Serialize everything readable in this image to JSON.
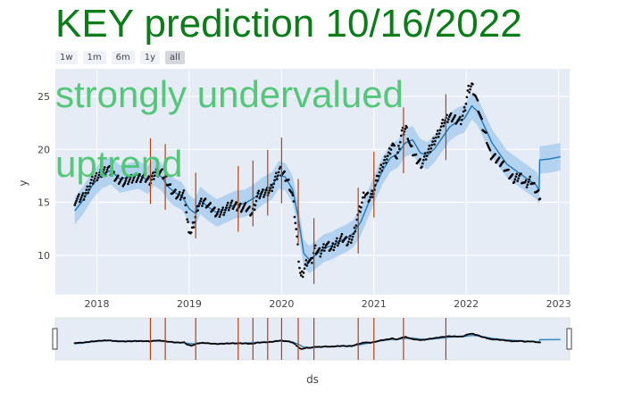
{
  "title": "KEY prediction 10/16/2022",
  "range_buttons": [
    {
      "label": "1w",
      "active": false
    },
    {
      "label": "1m",
      "active": false
    },
    {
      "label": "6m",
      "active": false
    },
    {
      "label": "1y",
      "active": false
    },
    {
      "label": "all",
      "active": true
    }
  ],
  "annotations": [
    "strongly undervalued",
    "uptrend"
  ],
  "colors": {
    "title": "#0b7d18",
    "annotation": "#4dc673",
    "plot_bg": "#e5ecf6",
    "forecast_line": "#1f77b4",
    "band": "#9ec7ec",
    "actual": "#000000",
    "changepoint": "#b5420c"
  },
  "chart_data": {
    "type": "line",
    "xlabel": "ds",
    "ylabel": "y",
    "x_range": [
      2017.55,
      2023.12
    ],
    "ylim": [
      6.3,
      27.6
    ],
    "x_ticks": [
      {
        "label": "2018",
        "value": 2018
      },
      {
        "label": "2019",
        "value": 2019
      },
      {
        "label": "2020",
        "value": 2020
      },
      {
        "label": "2021",
        "value": 2021
      },
      {
        "label": "2022",
        "value": 2022
      },
      {
        "label": "2023",
        "value": 2023
      }
    ],
    "y_ticks": [
      10,
      15,
      20,
      25
    ],
    "series": [
      {
        "kind": "forecast",
        "points": [
          [
            2017.76,
            14.2
          ],
          [
            2017.85,
            15.2
          ],
          [
            2017.95,
            16.6
          ],
          [
            2018.05,
            17.6
          ],
          [
            2018.15,
            18.0
          ],
          [
            2018.25,
            17.2
          ],
          [
            2018.35,
            17.4
          ],
          [
            2018.45,
            17.6
          ],
          [
            2018.55,
            17.1
          ],
          [
            2018.62,
            17.9
          ],
          [
            2018.7,
            17.4
          ],
          [
            2018.78,
            16.4
          ],
          [
            2018.85,
            15.9
          ],
          [
            2018.92,
            15.6
          ],
          [
            2019.0,
            14.4
          ],
          [
            2019.06,
            14.0
          ],
          [
            2019.12,
            15.2
          ],
          [
            2019.2,
            14.6
          ],
          [
            2019.3,
            14.0
          ],
          [
            2019.4,
            14.4
          ],
          [
            2019.5,
            14.8
          ],
          [
            2019.6,
            14.9
          ],
          [
            2019.7,
            15.4
          ],
          [
            2019.8,
            16.1
          ],
          [
            2019.9,
            16.6
          ],
          [
            2019.97,
            17.6
          ],
          [
            2020.04,
            17.4
          ],
          [
            2020.12,
            16.2
          ],
          [
            2020.18,
            13.6
          ],
          [
            2020.24,
            10.2
          ],
          [
            2020.3,
            9.6
          ],
          [
            2020.38,
            10.1
          ],
          [
            2020.46,
            10.7
          ],
          [
            2020.54,
            10.9
          ],
          [
            2020.62,
            11.3
          ],
          [
            2020.7,
            11.6
          ],
          [
            2020.78,
            12.1
          ],
          [
            2020.86,
            13.2
          ],
          [
            2020.94,
            14.9
          ],
          [
            2021.02,
            16.6
          ],
          [
            2021.1,
            18.1
          ],
          [
            2021.18,
            19.2
          ],
          [
            2021.26,
            19.6
          ],
          [
            2021.34,
            20.6
          ],
          [
            2021.42,
            20.9
          ],
          [
            2021.5,
            19.7
          ],
          [
            2021.58,
            19.4
          ],
          [
            2021.66,
            20.1
          ],
          [
            2021.74,
            21.1
          ],
          [
            2021.82,
            22.1
          ],
          [
            2021.9,
            22.6
          ],
          [
            2021.98,
            22.9
          ],
          [
            2022.06,
            24.1
          ],
          [
            2022.12,
            23.6
          ],
          [
            2022.2,
            22.1
          ],
          [
            2022.28,
            20.6
          ],
          [
            2022.36,
            19.6
          ],
          [
            2022.44,
            18.6
          ],
          [
            2022.52,
            18.1
          ],
          [
            2022.6,
            17.6
          ],
          [
            2022.68,
            17.1
          ],
          [
            2022.76,
            16.6
          ],
          [
            2022.79,
            16.1
          ],
          [
            2022.795,
            19.0
          ],
          [
            2022.9,
            19.1
          ],
          [
            2023.02,
            19.3
          ]
        ]
      },
      {
        "kind": "actual",
        "points": [
          [
            2017.76,
            15.2
          ],
          [
            2017.85,
            15.5
          ],
          [
            2017.95,
            17.0
          ],
          [
            2018.05,
            17.8
          ],
          [
            2018.12,
            18.2
          ],
          [
            2018.2,
            17.3
          ],
          [
            2018.3,
            16.9
          ],
          [
            2018.4,
            17.3
          ],
          [
            2018.5,
            17.4
          ],
          [
            2018.58,
            17.0
          ],
          [
            2018.64,
            18.0
          ],
          [
            2018.7,
            17.8
          ],
          [
            2018.76,
            17.0
          ],
          [
            2018.82,
            16.0
          ],
          [
            2018.88,
            15.5
          ],
          [
            2018.95,
            15.8
          ],
          [
            2018.98,
            13.0
          ],
          [
            2019.02,
            12.0
          ],
          [
            2019.06,
            13.3
          ],
          [
            2019.1,
            14.8
          ],
          [
            2019.16,
            15.2
          ],
          [
            2019.22,
            14.6
          ],
          [
            2019.3,
            13.9
          ],
          [
            2019.38,
            14.3
          ],
          [
            2019.46,
            14.8
          ],
          [
            2019.54,
            14.6
          ],
          [
            2019.62,
            14.5
          ],
          [
            2019.68,
            14.0
          ],
          [
            2019.74,
            15.6
          ],
          [
            2019.82,
            15.9
          ],
          [
            2019.88,
            16.2
          ],
          [
            2019.94,
            17.3
          ],
          [
            2019.98,
            18.0
          ],
          [
            2020.03,
            17.6
          ],
          [
            2020.08,
            16.8
          ],
          [
            2020.12,
            15.6
          ],
          [
            2020.16,
            12.3
          ],
          [
            2020.19,
            9.3
          ],
          [
            2020.21,
            7.9
          ],
          [
            2020.24,
            8.6
          ],
          [
            2020.28,
            9.6
          ],
          [
            2020.32,
            9.3
          ],
          [
            2020.36,
            10.6
          ],
          [
            2020.42,
            10.3
          ],
          [
            2020.48,
            11.1
          ],
          [
            2020.54,
            10.6
          ],
          [
            2020.6,
            11.3
          ],
          [
            2020.66,
            11.6
          ],
          [
            2020.72,
            11.2
          ],
          [
            2020.78,
            11.9
          ],
          [
            2020.82,
            13.6
          ],
          [
            2020.86,
            14.6
          ],
          [
            2020.9,
            15.9
          ],
          [
            2020.95,
            15.4
          ],
          [
            2021.0,
            16.1
          ],
          [
            2021.05,
            17.6
          ],
          [
            2021.1,
            18.6
          ],
          [
            2021.16,
            19.6
          ],
          [
            2021.2,
            20.6
          ],
          [
            2021.25,
            19.1
          ],
          [
            2021.3,
            21.6
          ],
          [
            2021.35,
            22.1
          ],
          [
            2021.4,
            20.1
          ],
          [
            2021.46,
            19.1
          ],
          [
            2021.52,
            18.6
          ],
          [
            2021.58,
            19.6
          ],
          [
            2021.64,
            20.6
          ],
          [
            2021.7,
            21.6
          ],
          [
            2021.76,
            22.6
          ],
          [
            2021.82,
            23.1
          ],
          [
            2021.88,
            22.9
          ],
          [
            2021.94,
            22.6
          ],
          [
            2021.98,
            23.6
          ],
          [
            2022.02,
            25.6
          ],
          [
            2022.06,
            26.1
          ],
          [
            2022.1,
            25.1
          ],
          [
            2022.14,
            23.6
          ],
          [
            2022.18,
            22.1
          ],
          [
            2022.22,
            21.1
          ],
          [
            2022.26,
            19.6
          ],
          [
            2022.32,
            19.1
          ],
          [
            2022.4,
            18.6
          ],
          [
            2022.46,
            17.6
          ],
          [
            2022.52,
            17.1
          ],
          [
            2022.58,
            17.6
          ],
          [
            2022.64,
            16.6
          ],
          [
            2022.7,
            17.1
          ],
          [
            2022.76,
            16.1
          ],
          [
            2022.8,
            15.6
          ]
        ]
      },
      {
        "kind": "changepoints",
        "x": [
          2018.58,
          2018.74,
          2019.07,
          2019.53,
          2019.69,
          2019.85,
          2020.0,
          2020.18,
          2020.35,
          2020.83,
          2021.0,
          2021.32,
          2021.78
        ]
      }
    ]
  }
}
